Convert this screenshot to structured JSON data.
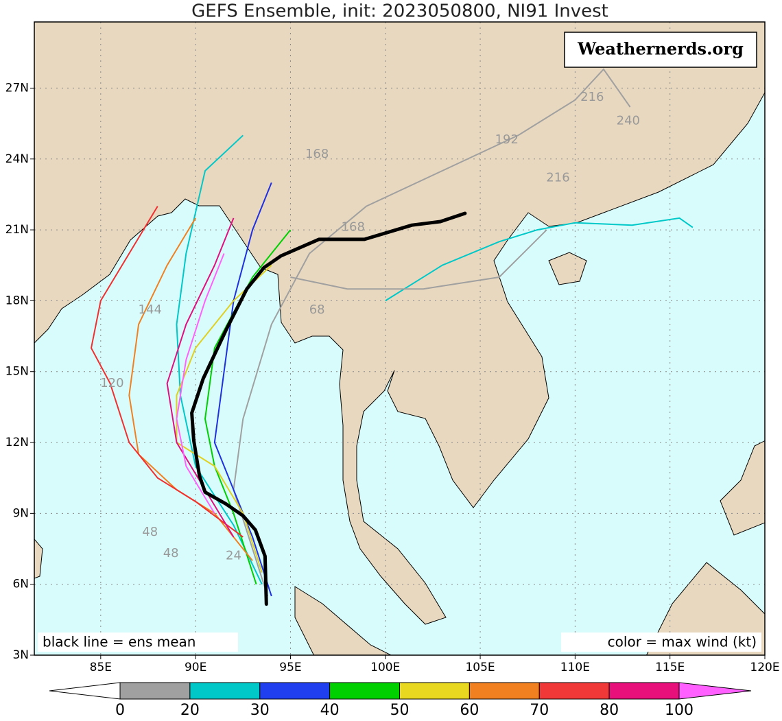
{
  "map": {
    "title": "GEFS Ensemble, init: 2023050800, NI91 Invest",
    "watermark": "Weathernerds.org",
    "note_left": "black line = ens mean",
    "note_right": "color = max wind (kt)",
    "xlim": [
      81.5,
      120
    ],
    "ylim": [
      3,
      29.8
    ],
    "xticks": [
      {
        "value": 85,
        "label": "85E"
      },
      {
        "value": 90,
        "label": "90E"
      },
      {
        "value": 95,
        "label": "95E"
      },
      {
        "value": 100,
        "label": "100E"
      },
      {
        "value": 105,
        "label": "105E"
      },
      {
        "value": 110,
        "label": "110E"
      },
      {
        "value": 115,
        "label": "115E"
      },
      {
        "value": 120,
        "label": "120E"
      }
    ],
    "yticks": [
      {
        "value": 3,
        "label": "3N"
      },
      {
        "value": 6,
        "label": "6N"
      },
      {
        "value": 9,
        "label": "9N"
      },
      {
        "value": 12,
        "label": "12N"
      },
      {
        "value": 15,
        "label": "15N"
      },
      {
        "value": 18,
        "label": "18N"
      },
      {
        "value": 21,
        "label": "21N"
      },
      {
        "value": 24,
        "label": "24N"
      },
      {
        "value": 27,
        "label": "27N"
      }
    ],
    "mean_track": {
      "lon": [
        93.73,
        93.66,
        93.15,
        92.5,
        91.6,
        90.5,
        90.2,
        89.9,
        89.8,
        90.4,
        91.6,
        92.7,
        93.6,
        94.5,
        96.5,
        98.9,
        101.4,
        102.9,
        104.2
      ],
      "lat": [
        5.16,
        7.19,
        8.3,
        8.9,
        9.4,
        9.9,
        10.6,
        12.1,
        13.25,
        14.7,
        16.75,
        18.5,
        19.4,
        19.9,
        20.6,
        20.6,
        21.2,
        21.35,
        21.7
      ]
    },
    "members": [
      {
        "color": "#a0a0a0",
        "lon": [
          93.8,
          93,
          92,
          92.5,
          94,
          96,
          99,
          103,
          107,
          110,
          111.5,
          112.9
        ],
        "lat": [
          5.5,
          7.5,
          10,
          13,
          17,
          20,
          22,
          23.5,
          25,
          26.5,
          27.8,
          26.2
        ]
      },
      {
        "color": "#00c8c8",
        "lon": [
          93.5,
          92,
          90,
          89.2,
          89,
          89.5,
          90.5,
          92.5
        ],
        "lat": [
          6,
          8.5,
          11,
          14,
          17,
          20,
          23.5,
          25
        ]
      },
      {
        "color": "#2030e0",
        "lon": [
          94,
          93,
          92,
          91,
          91.5,
          92,
          93,
          94
        ],
        "lat": [
          5.5,
          8,
          10,
          12,
          15,
          18,
          21,
          23
        ]
      },
      {
        "color": "#00d000",
        "lon": [
          93.2,
          92,
          91,
          90.5,
          91,
          93,
          95
        ],
        "lat": [
          6,
          9,
          11,
          13,
          16,
          19,
          21
        ]
      },
      {
        "color": "#e0d020",
        "lon": [
          93.5,
          92.5,
          91,
          89,
          89,
          90,
          92,
          94
        ],
        "lat": [
          6.5,
          9,
          11,
          12,
          14,
          16,
          18,
          19.5
        ]
      },
      {
        "color": "#f08020",
        "lon": [
          93,
          91,
          89,
          87,
          86.5,
          87,
          88.5,
          90
        ],
        "lat": [
          7,
          9,
          10,
          11.5,
          14,
          17,
          19.5,
          21.5
        ]
      },
      {
        "color": "#f03030",
        "lon": [
          92.5,
          90,
          88,
          86.5,
          85.5,
          84.5,
          85,
          86.5,
          88
        ],
        "lat": [
          8,
          9.5,
          10.5,
          12,
          14.5,
          16,
          18,
          20,
          22
        ]
      },
      {
        "color": "#e01080",
        "lon": [
          92,
          90.5,
          89,
          88.5,
          89.5,
          91,
          92
        ],
        "lat": [
          8,
          10,
          12,
          14.5,
          17,
          19.5,
          21.5
        ]
      },
      {
        "color": "#ff60ff",
        "lon": [
          91,
          89.5,
          89,
          89.5,
          90.5,
          91.5
        ],
        "lat": [
          9,
          11,
          13,
          15.5,
          18,
          20
        ]
      },
      {
        "color": "#00c8c8",
        "lon": [
          100,
          103,
          106,
          108,
          110,
          113,
          115.5,
          116.2
        ],
        "lat": [
          18,
          19.5,
          20.5,
          21,
          21.3,
          21.2,
          21.5,
          21.1
        ]
      },
      {
        "color": "#a0a0a0",
        "lon": [
          95,
          98,
          102,
          106,
          108.5
        ],
        "lat": [
          19,
          18.5,
          18.5,
          19,
          21
        ]
      }
    ],
    "hour_labels": [
      {
        "text": "216",
        "lon": 110.9,
        "lat": 26.6
      },
      {
        "text": "240",
        "lon": 112.8,
        "lat": 25.6
      },
      {
        "text": "192",
        "lon": 106.4,
        "lat": 24.8
      },
      {
        "text": "216",
        "lon": 109.1,
        "lat": 23.2
      },
      {
        "text": "168",
        "lon": 96.4,
        "lat": 24.2
      },
      {
        "text": "168",
        "lon": 98.3,
        "lat": 21.1
      },
      {
        "text": "68",
        "lon": 96.4,
        "lat": 17.6
      },
      {
        "text": "144",
        "lon": 87.6,
        "lat": 17.6
      },
      {
        "text": "120",
        "lon": 85.6,
        "lat": 14.5
      },
      {
        "text": "48",
        "lon": 87.6,
        "lat": 8.2
      },
      {
        "text": "48",
        "lon": 88.7,
        "lat": 7.3
      },
      {
        "text": "24",
        "lon": 92,
        "lat": 7.2
      }
    ],
    "colorbar": {
      "bounds": [
        0,
        20,
        30,
        40,
        50,
        60,
        70,
        80,
        100
      ],
      "colors": [
        "#a0a0a0",
        "#00c8c8",
        "#2040f0",
        "#00d000",
        "#e8d820",
        "#f08020",
        "#f03838",
        "#e8107a"
      ],
      "under_color": "#ffffff",
      "over_color": "#ff60ff"
    }
  }
}
